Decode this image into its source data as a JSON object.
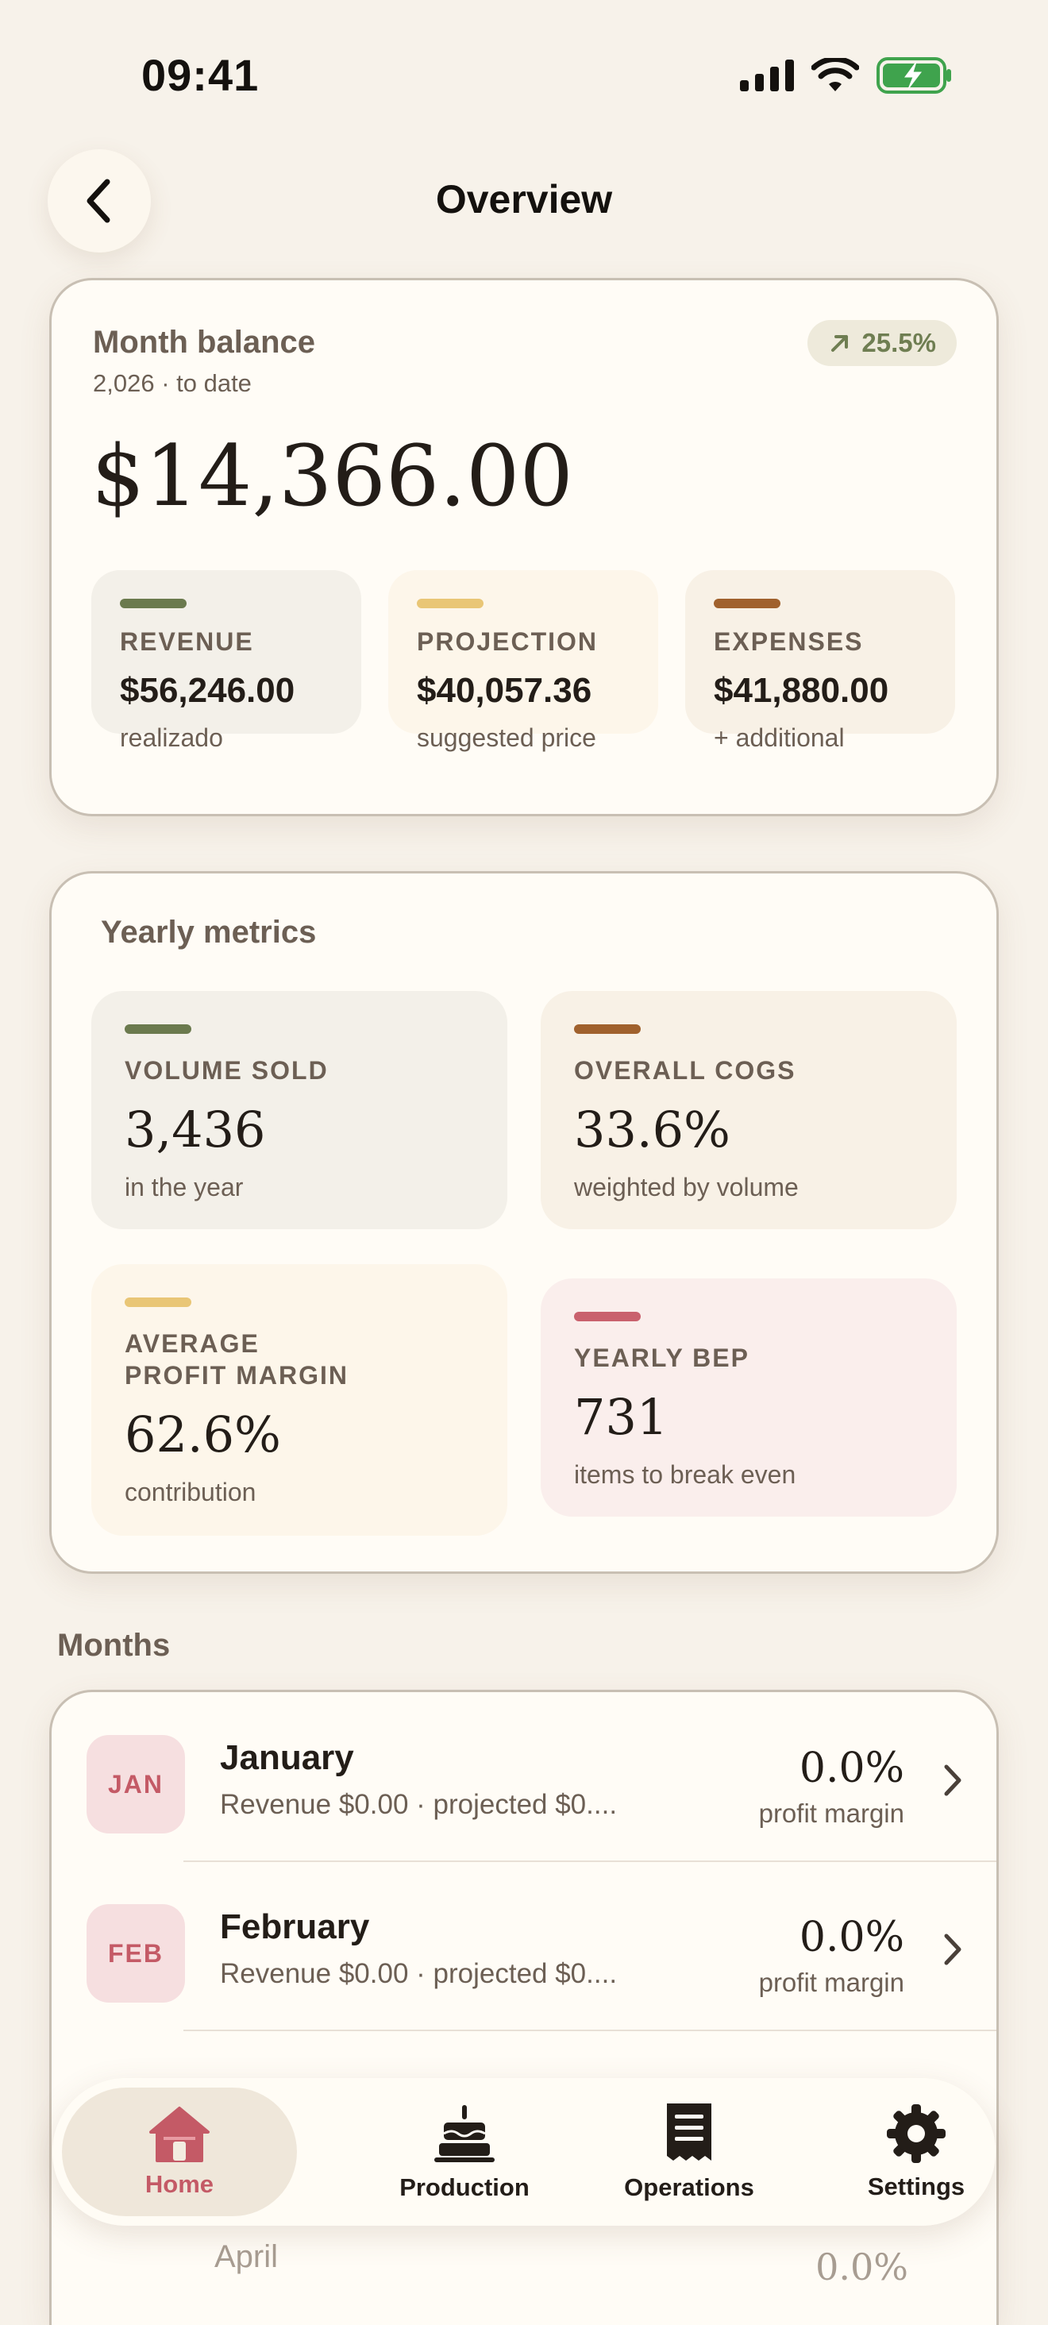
{
  "status_bar": {
    "time": "09:41",
    "icons": [
      "signal-icon",
      "wifi-icon",
      "battery-charging-icon"
    ]
  },
  "header": {
    "title": "Overview",
    "back_icon": "chevron-left-icon"
  },
  "balance": {
    "label": "Month balance",
    "subtitle": "2,026 · to date",
    "change": "25.5%",
    "amount": "$14,366.00",
    "stats": [
      {
        "title": "REVENUE",
        "value": "$56,246.00",
        "note": "realizado",
        "color": "#6b7a4e",
        "bg": "#f3f0e9"
      },
      {
        "title": "PROJECTION",
        "value": "$40,057.36",
        "note": "suggested price",
        "color": "#e9c676",
        "bg": "#fdf6ea"
      },
      {
        "title": "EXPENSES",
        "value": "$41,880.00",
        "note": "+ additional",
        "color": "#a0612d",
        "bg": "#f8f1e6"
      }
    ]
  },
  "metrics": {
    "title": "Yearly metrics",
    "items": [
      {
        "title": "VOLUME SOLD",
        "value": "3,436",
        "note": "in the year",
        "color": "#6b7a4e",
        "bg": "#f3f0e9"
      },
      {
        "title": "OVERALL COGS",
        "value": "33.6%",
        "note": "weighted by volume",
        "color": "#a0612d",
        "bg": "#f8f1e6"
      },
      {
        "title": "AVERAGE",
        "title2": "PROFIT MARGIN",
        "value": "62.6%",
        "note": "contribution",
        "color": "#e9c676",
        "bg": "#fdf6ea"
      },
      {
        "title": "YEARLY BEP",
        "value": "731",
        "note": "items to break even",
        "color": "#c9616d",
        "bg": "#faeeec"
      }
    ]
  },
  "months": {
    "label": "Months",
    "rows": [
      {
        "abbr": "JAN",
        "name": "January",
        "desc": "Revenue $0.00 · projected $0....",
        "pct": "0.0%",
        "pct_label": "profit margin"
      },
      {
        "abbr": "FEB",
        "name": "February",
        "desc": "Revenue $0.00 · projected $0....",
        "pct": "0.0%",
        "pct_label": "profit margin"
      }
    ],
    "peek_name": "April",
    "peek_pct": "0.0%"
  },
  "tabs": [
    {
      "label": "Home",
      "icon": "house-icon",
      "active": true
    },
    {
      "label": "Production",
      "icon": "cake-icon",
      "active": false
    },
    {
      "label": "Operations",
      "icon": "receipt-icon",
      "active": false
    },
    {
      "label": "Settings",
      "icon": "gear-icon",
      "active": false
    }
  ]
}
